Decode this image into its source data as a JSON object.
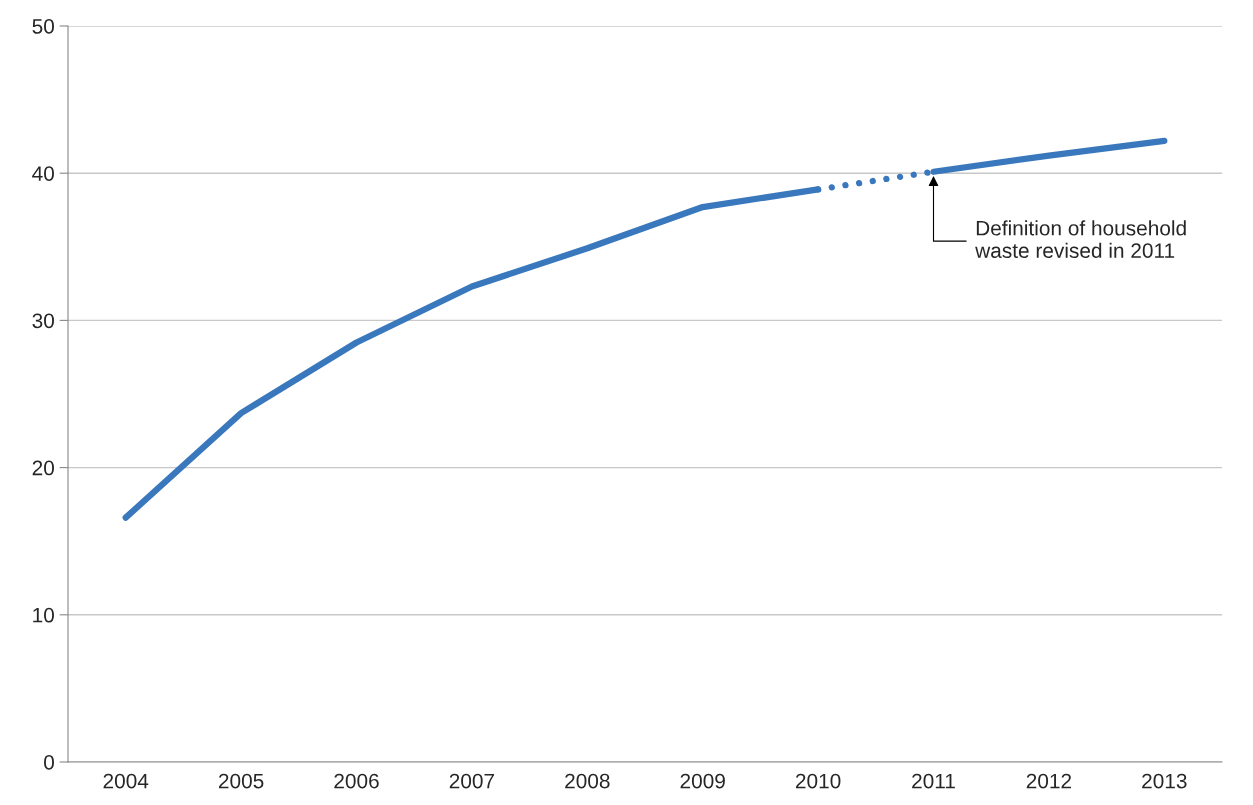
{
  "chart_data": {
    "type": "line",
    "categories": [
      "2004",
      "2005",
      "2006",
      "2007",
      "2008",
      "2009",
      "2010",
      "2011",
      "2012",
      "2013"
    ],
    "series": [
      {
        "color": "#3a78bd",
        "line_style": "solid",
        "values": [
          16.6,
          23.7,
          28.5,
          32.3,
          34.9,
          37.7,
          38.9,
          null,
          null,
          null
        ]
      },
      {
        "color": "#3a78bd",
        "line_style": "dotted",
        "values": [
          null,
          null,
          null,
          null,
          null,
          null,
          38.9,
          40.1,
          null,
          null
        ]
      },
      {
        "color": "#3a78bd",
        "line_style": "solid",
        "values": [
          null,
          null,
          null,
          null,
          null,
          null,
          null,
          40.1,
          41.2,
          42.2
        ]
      }
    ],
    "ylim": [
      0,
      50
    ],
    "yticks": [
      0,
      10,
      20,
      30,
      40,
      50
    ],
    "grid": "y",
    "legend": false,
    "marker": "none",
    "annotations": [
      {
        "text": "Definition of household\nwaste revised in 2011",
        "x": "2011",
        "y": 40.1
      }
    ]
  }
}
